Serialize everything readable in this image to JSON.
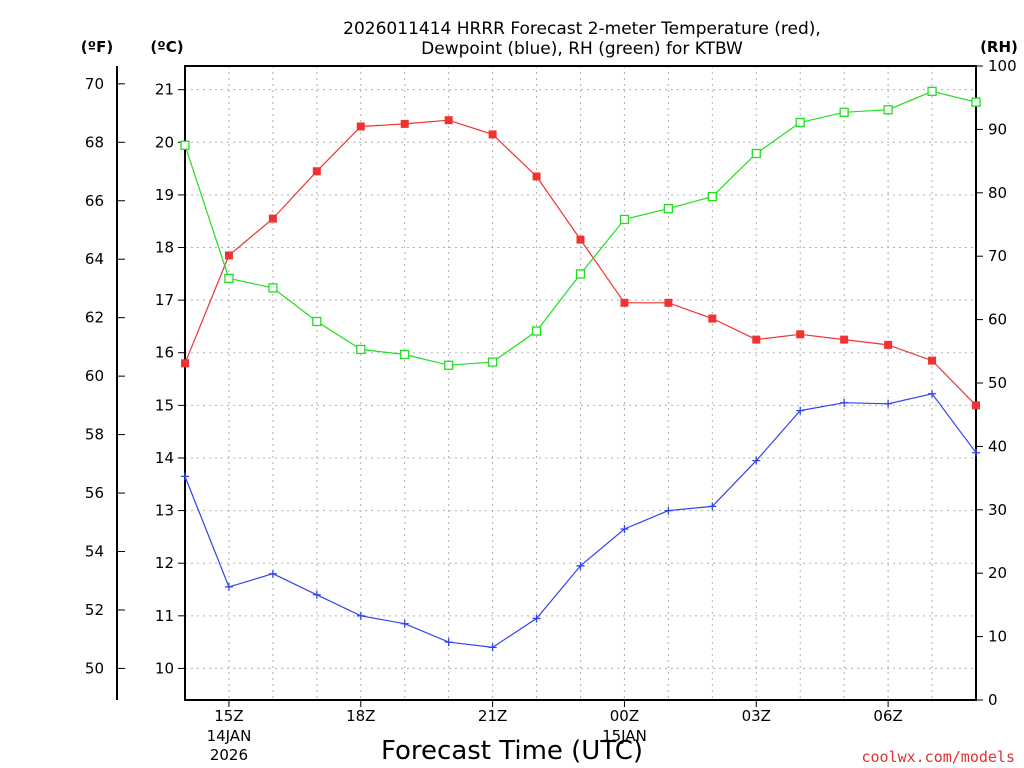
{
  "chart_data": {
    "type": "line",
    "title_line1": "2026011414 HRRR Forecast 2-meter Temperature (red),",
    "title_line2": "Dewpoint (blue), RH (green) for KTBW",
    "units": {
      "f": "(ºF)",
      "c": "(ºC)",
      "rh": "(RH)"
    },
    "xlabel": "Forecast Time (UTC)",
    "credit": "coolwx.com/models",
    "hours": [
      14,
      15,
      16,
      17,
      18,
      19,
      20,
      21,
      22,
      23,
      24,
      25,
      26,
      27,
      28,
      29,
      30,
      31,
      32
    ],
    "x_ticks": [
      {
        "hour": 15,
        "label": "15Z",
        "sub1": "14JAN",
        "sub2": "2026"
      },
      {
        "hour": 18,
        "label": "18Z",
        "sub1": "",
        "sub2": ""
      },
      {
        "hour": 21,
        "label": "21Z",
        "sub1": "",
        "sub2": ""
      },
      {
        "hour": 24,
        "label": "00Z",
        "sub1": "15JAN",
        "sub2": ""
      },
      {
        "hour": 27,
        "label": "03Z",
        "sub1": "",
        "sub2": ""
      },
      {
        "hour": 30,
        "label": "06Z",
        "sub1": "",
        "sub2": ""
      }
    ],
    "y_celsius": {
      "min": 9.4,
      "max": 21.45,
      "ticks": [
        10,
        11,
        12,
        13,
        14,
        15,
        16,
        17,
        18,
        19,
        20,
        21
      ]
    },
    "y_fahrenheit": {
      "ticks": [
        50,
        52,
        54,
        56,
        58,
        60,
        62,
        64,
        66,
        68,
        70
      ]
    },
    "y_rh": {
      "min": 0,
      "max": 100,
      "ticks": [
        0,
        10,
        20,
        30,
        40,
        50,
        60,
        70,
        80,
        90,
        100
      ]
    },
    "series": [
      {
        "name": "Temperature (red)",
        "unit": "C",
        "color": "#ee3333",
        "marker": "filled-square",
        "values": [
          15.8,
          17.85,
          18.55,
          19.45,
          20.3,
          20.35,
          20.42,
          20.15,
          19.35,
          18.15,
          16.95,
          16.95,
          16.65,
          16.25,
          16.35,
          16.25,
          16.15,
          15.85,
          15.0
        ]
      },
      {
        "name": "Dewpoint (blue)",
        "unit": "C",
        "color": "#3344ee",
        "marker": "plus",
        "values": [
          13.65,
          11.55,
          11.8,
          11.4,
          11.0,
          10.85,
          10.5,
          10.4,
          10.95,
          11.95,
          12.65,
          13.0,
          13.08,
          13.95,
          14.9,
          15.05,
          15.03,
          15.22,
          14.1
        ]
      },
      {
        "name": "RH (green)",
        "unit": "%",
        "color": "#22dd22",
        "marker": "open-square",
        "values": [
          87.5,
          66.5,
          65,
          59.7,
          55.3,
          54.5,
          52.8,
          53.3,
          58.2,
          67.2,
          75.8,
          77.5,
          79.4,
          86.2,
          91.1,
          92.7,
          93.1,
          96,
          94.3
        ]
      }
    ]
  }
}
